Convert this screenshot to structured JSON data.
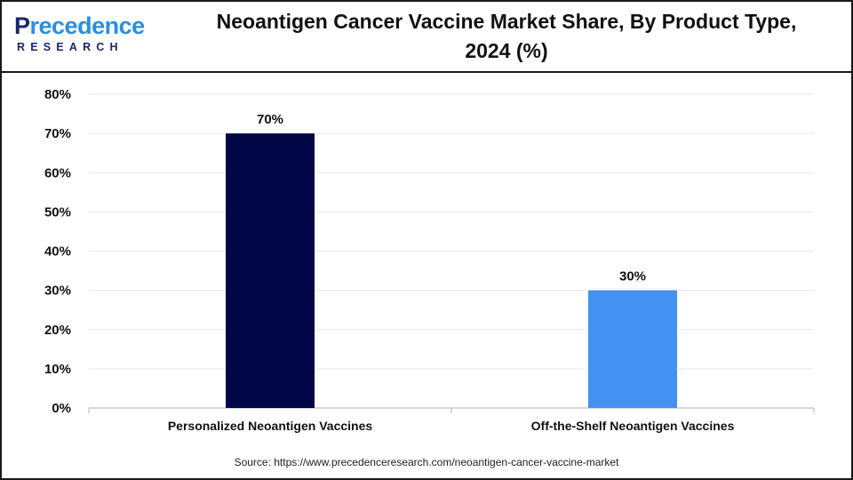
{
  "brand": {
    "logo_first": "P",
    "logo_rest": "recedence",
    "logo_sub": "RESEARCH"
  },
  "header": {
    "title_line1": "Neoantigen Cancer Vaccine Market Share, By Product Type,",
    "title_line2": "2024 (%)"
  },
  "footer": {
    "source": "Source: https://www.precedenceresearch.com/neoantigen-cancer-vaccine-market"
  },
  "chart_data": {
    "type": "bar",
    "title": "Neoantigen Cancer Vaccine Market Share, By Product Type, 2024 (%)",
    "categories": [
      "Personalized Neoantigen Vaccines",
      "Off-the-Shelf Neoantigen Vaccines"
    ],
    "values": [
      70,
      30
    ],
    "data_labels": [
      "70%",
      "30%"
    ],
    "bar_colors": [
      "#020748",
      "#4392f1"
    ],
    "ylim": [
      0,
      80
    ],
    "yticks": [
      0,
      10,
      20,
      30,
      40,
      50,
      60,
      70,
      80
    ],
    "ytick_labels": [
      "0%",
      "10%",
      "20%",
      "30%",
      "40%",
      "50%",
      "60%",
      "70%",
      "80%"
    ],
    "grid": true,
    "grid_color": "#e6e6e6",
    "legend": "none"
  }
}
